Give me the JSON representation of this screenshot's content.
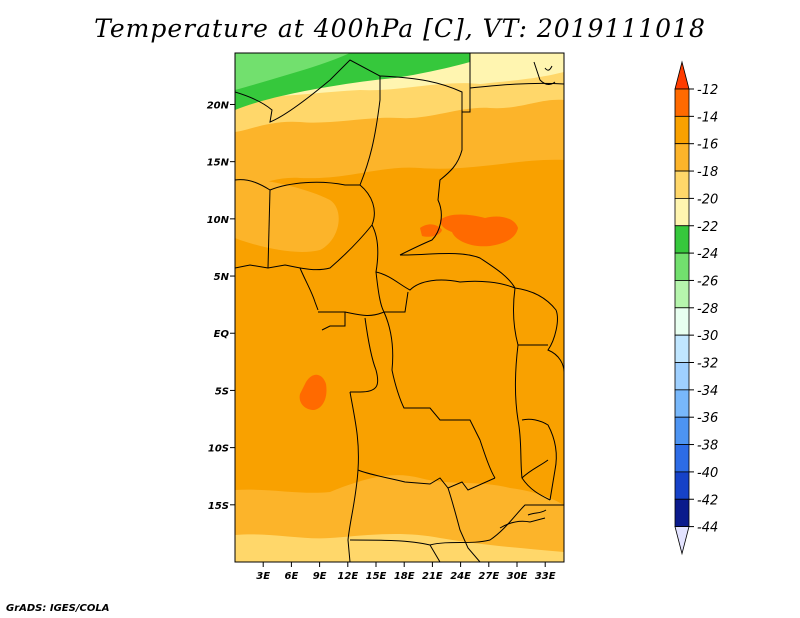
{
  "title": "Temperature at 400hPa [C], VT: 2019111018",
  "credit": "GrADS: IGES/COLA",
  "map": {
    "lon_range": [
      0,
      35
    ],
    "lat_range": [
      -20,
      24.5
    ],
    "lon_ticks": [
      "3E",
      "6E",
      "9E",
      "12E",
      "15E",
      "18E",
      "21E",
      "24E",
      "27E",
      "30E",
      "33E"
    ],
    "lon_values": [
      3,
      6,
      9,
      12,
      15,
      18,
      21,
      24,
      27,
      30,
      33
    ],
    "lat_ticks": [
      "20N",
      "15N",
      "10N",
      "5N",
      "EQ",
      "5S",
      "10S",
      "15S"
    ],
    "lat_values": [
      20,
      15,
      10,
      5,
      0,
      -5,
      -10,
      -15
    ]
  },
  "colorbar": {
    "labels": [
      "-12",
      "-14",
      "-16",
      "-18",
      "-20",
      "-22",
      "-24",
      "-26",
      "-28",
      "-30",
      "-32",
      "-34",
      "-36",
      "-38",
      "-40",
      "-42",
      "-44"
    ],
    "colors": [
      "#ff3c00",
      "#ff6a00",
      "#f9a100",
      "#fcb42a",
      "#ffd76a",
      "#fff5b0",
      "#36c83c",
      "#72e06e",
      "#b6f5ad",
      "#e8fff0",
      "#c0e6ff",
      "#9fd0ff",
      "#78b8fb",
      "#4d94f2",
      "#2d6ce6",
      "#1642c8",
      "#0a1a8c",
      "#e3e3ff"
    ],
    "colors_note": ""
  },
  "field_colors": {
    "c_12": "#ff3c00",
    "c_14": "#ff6a00",
    "c_16": "#f9a100",
    "c_18": "#fcb42a",
    "c_20": "#ffd76a",
    "c_22": "#fff5b0",
    "c_24": "#36c83c",
    "c_26": "#72e06e",
    "c_28": "#b6f5ad"
  }
}
